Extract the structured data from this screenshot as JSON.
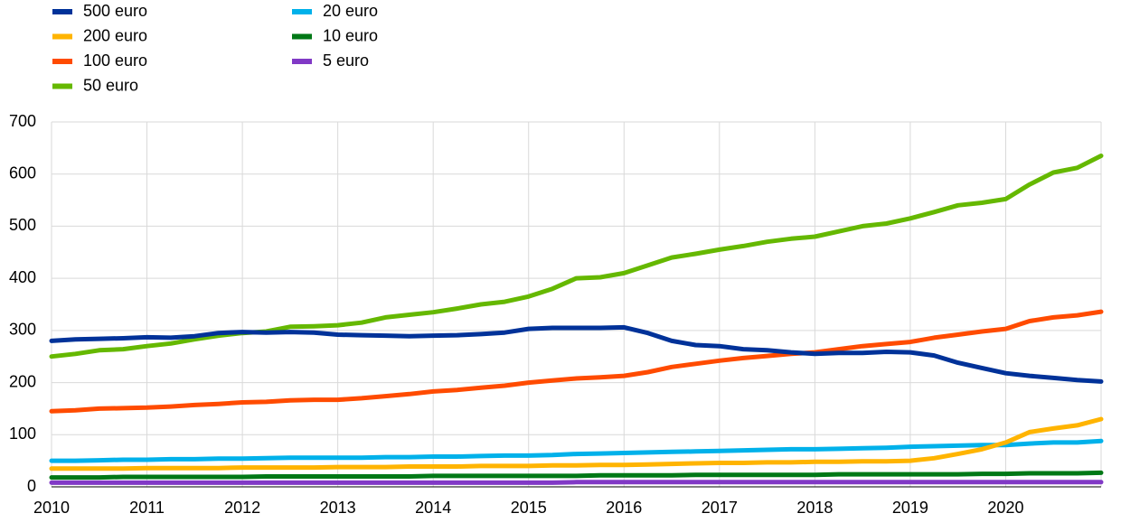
{
  "chart_data": {
    "type": "line",
    "x": [
      2010,
      2010.25,
      2010.5,
      2010.75,
      2011,
      2011.25,
      2011.5,
      2011.75,
      2012,
      2012.25,
      2012.5,
      2012.75,
      2013,
      2013.25,
      2013.5,
      2013.75,
      2014,
      2014.25,
      2014.5,
      2014.75,
      2015,
      2015.25,
      2015.5,
      2015.75,
      2016,
      2016.25,
      2016.5,
      2016.75,
      2017,
      2017.25,
      2017.5,
      2017.75,
      2018,
      2018.25,
      2018.5,
      2018.75,
      2019,
      2019.25,
      2019.5,
      2019.75,
      2020,
      2020.25,
      2020.5,
      2020.75,
      2021
    ],
    "series": [
      {
        "name": "500 euro",
        "color": "#003299",
        "values": [
          280,
          283,
          284,
          285,
          287,
          286,
          289,
          295,
          297,
          296,
          297,
          296,
          292,
          291,
          290,
          289,
          290,
          291,
          293,
          296,
          303,
          305,
          305,
          305,
          306,
          295,
          280,
          272,
          270,
          264,
          262,
          258,
          255,
          257,
          257,
          259,
          258,
          252,
          238,
          228,
          218,
          213,
          209,
          205,
          202
        ]
      },
      {
        "name": "200 euro",
        "color": "#ffb400",
        "values": [
          35,
          35,
          35,
          35,
          36,
          36,
          36,
          36,
          37,
          37,
          37,
          37,
          38,
          38,
          38,
          39,
          39,
          39,
          40,
          40,
          40,
          41,
          41,
          42,
          42,
          43,
          44,
          45,
          46,
          46,
          47,
          47,
          48,
          48,
          49,
          49,
          50,
          55,
          63,
          72,
          85,
          105,
          112,
          118,
          130
        ]
      },
      {
        "name": "100 euro",
        "color": "#ff4b00",
        "values": [
          145,
          147,
          150,
          151,
          152,
          154,
          157,
          159,
          162,
          163,
          166,
          167,
          167,
          170,
          174,
          178,
          183,
          186,
          190,
          194,
          200,
          204,
          208,
          210,
          213,
          220,
          230,
          236,
          242,
          247,
          251,
          255,
          258,
          264,
          270,
          274,
          278,
          286,
          292,
          298,
          303,
          318,
          325,
          329,
          336
        ]
      },
      {
        "name": "50 euro",
        "color": "#65b800",
        "values": [
          250,
          255,
          262,
          264,
          270,
          275,
          283,
          290,
          295,
          298,
          307,
          308,
          310,
          315,
          325,
          330,
          335,
          342,
          350,
          355,
          365,
          380,
          400,
          402,
          410,
          425,
          440,
          447,
          455,
          462,
          470,
          476,
          480,
          490,
          500,
          505,
          515,
          527,
          540,
          545,
          552,
          580,
          603,
          612,
          635
        ]
      },
      {
        "name": "20 euro",
        "color": "#00b1ea",
        "values": [
          50,
          50,
          51,
          52,
          52,
          53,
          53,
          54,
          54,
          55,
          56,
          56,
          56,
          56,
          57,
          57,
          58,
          58,
          59,
          60,
          60,
          61,
          63,
          64,
          65,
          66,
          67,
          68,
          69,
          70,
          71,
          72,
          72,
          73,
          74,
          75,
          77,
          78,
          79,
          80,
          80,
          83,
          85,
          85,
          88
        ]
      },
      {
        "name": "10 euro",
        "color": "#007816",
        "values": [
          18,
          18,
          18,
          19,
          19,
          19,
          19,
          19,
          19,
          20,
          20,
          20,
          20,
          20,
          20,
          20,
          21,
          21,
          21,
          21,
          21,
          21,
          21,
          22,
          22,
          22,
          22,
          23,
          23,
          23,
          23,
          23,
          23,
          24,
          24,
          24,
          24,
          24,
          24,
          25,
          25,
          26,
          26,
          26,
          27
        ]
      },
      {
        "name": "5 euro",
        "color": "#8139c6",
        "values": [
          8,
          8,
          8,
          8,
          8,
          8,
          8,
          8,
          8,
          8,
          8,
          8,
          8,
          8,
          8,
          8,
          8,
          8,
          8,
          8,
          8,
          8,
          9,
          9,
          9,
          9,
          9,
          9,
          9,
          9,
          9,
          9,
          9,
          9,
          9,
          9,
          9,
          9,
          9,
          9,
          9,
          9,
          9,
          9,
          9
        ]
      }
    ],
    "xlim": [
      2010,
      2021
    ],
    "xticks": [
      2010,
      2011,
      2012,
      2013,
      2014,
      2015,
      2016,
      2017,
      2018,
      2019,
      2020
    ],
    "ylim": [
      0,
      700
    ],
    "yticks": [
      0,
      100,
      200,
      300,
      400,
      500,
      600,
      700
    ],
    "grid": true
  }
}
